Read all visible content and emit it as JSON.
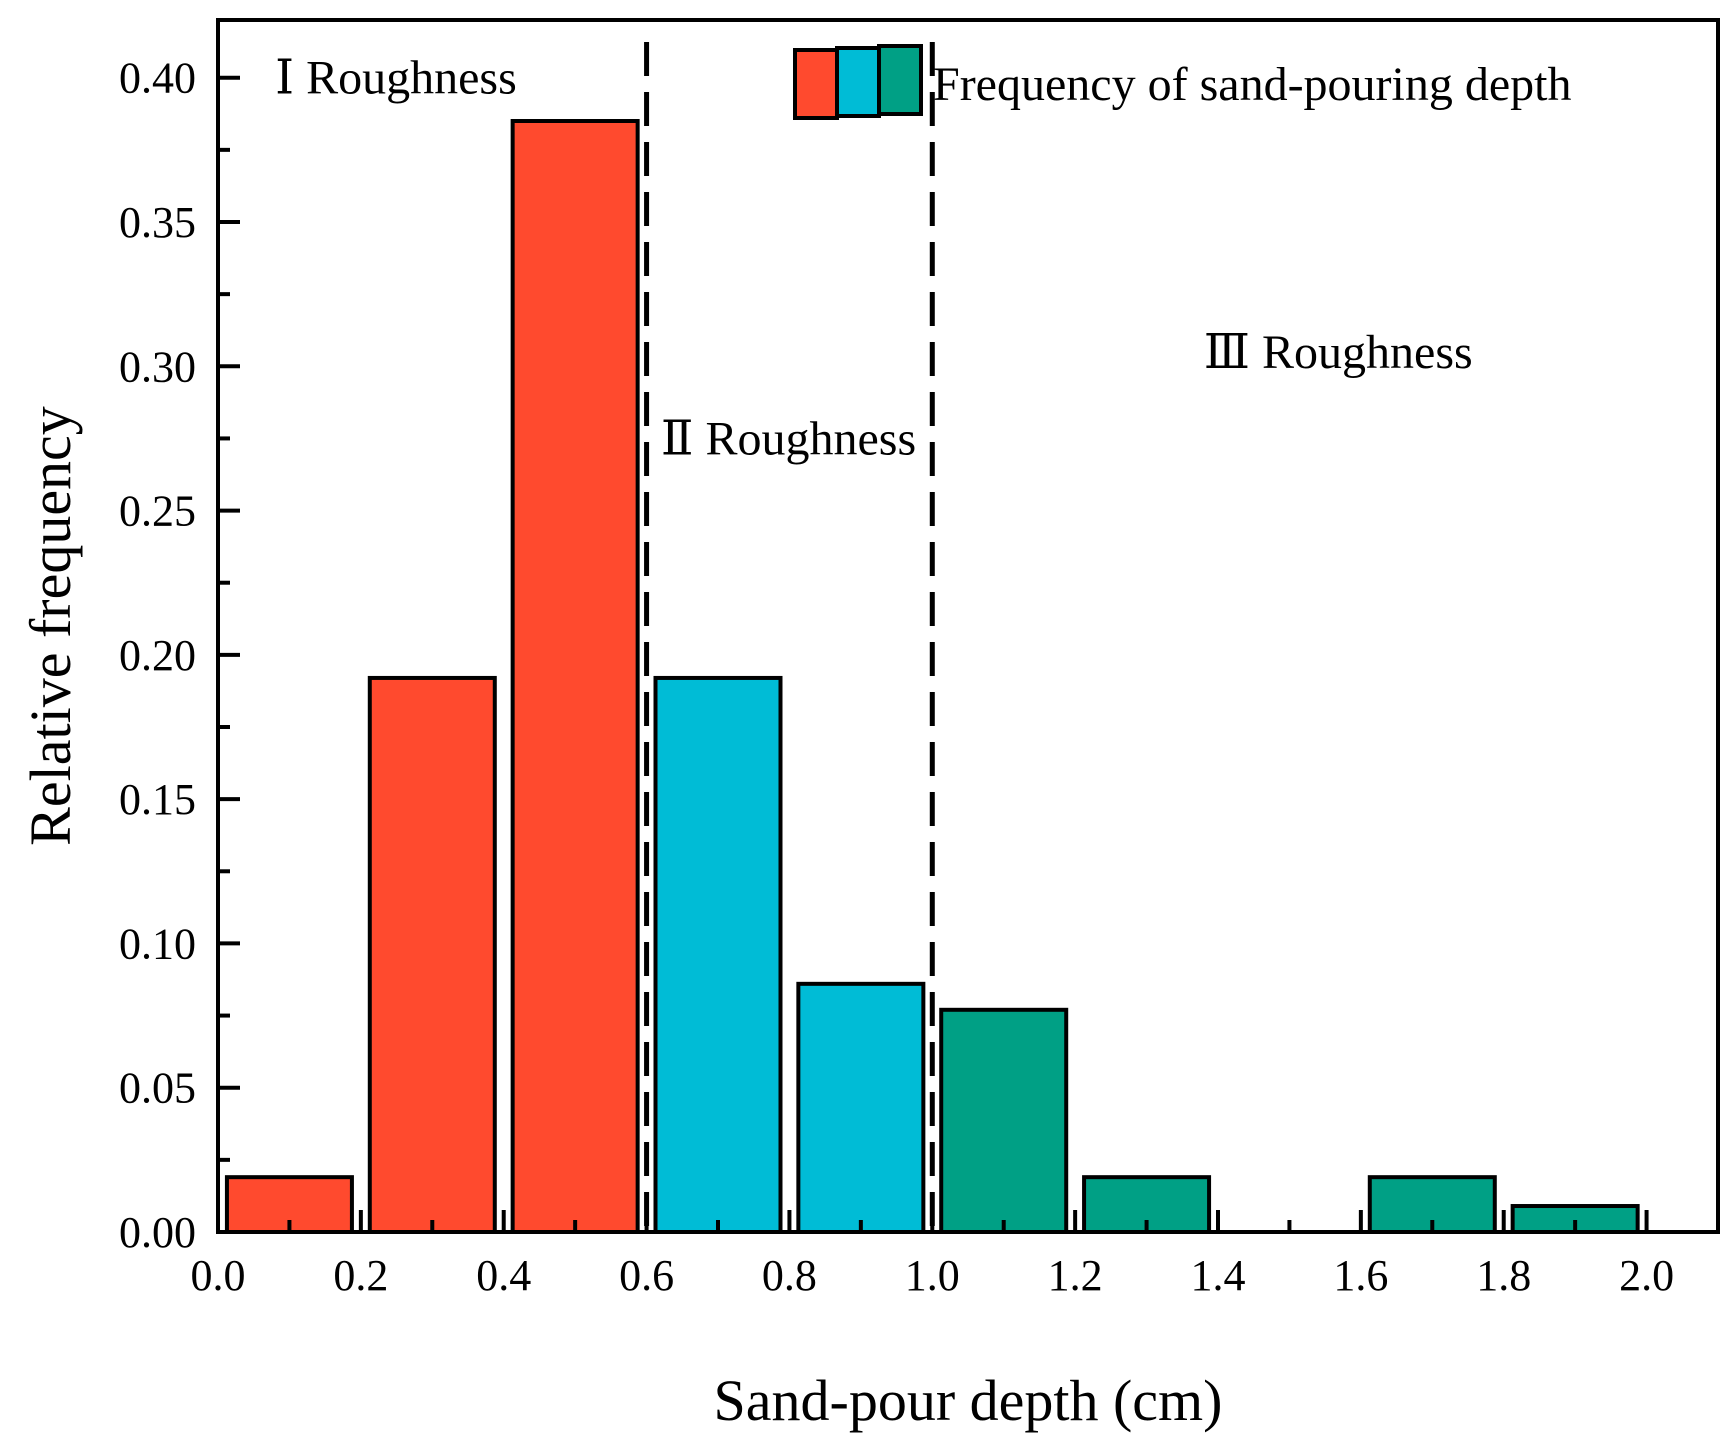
{
  "chart_data": {
    "type": "bar",
    "title": "",
    "xlabel": "Sand-pour depth (cm)",
    "ylabel": "Relative frequency",
    "xlim": [
      0.0,
      2.1
    ],
    "ylim": [
      0.0,
      0.42
    ],
    "x_ticks": [
      "0.0",
      "0.2",
      "0.4",
      "0.6",
      "0.8",
      "1.0",
      "1.2",
      "1.4",
      "1.6",
      "1.8",
      "2.0"
    ],
    "y_ticks": [
      "0.00",
      "0.05",
      "0.10",
      "0.15",
      "0.20",
      "0.25",
      "0.30",
      "0.35",
      "0.40"
    ],
    "bin_width": 0.2,
    "bins": [
      {
        "x0": 0.0,
        "x1": 0.2,
        "value": 0.019,
        "region": "I"
      },
      {
        "x0": 0.2,
        "x1": 0.4,
        "value": 0.192,
        "region": "I"
      },
      {
        "x0": 0.4,
        "x1": 0.6,
        "value": 0.385,
        "region": "I"
      },
      {
        "x0": 0.6,
        "x1": 0.8,
        "value": 0.192,
        "region": "II"
      },
      {
        "x0": 0.8,
        "x1": 1.0,
        "value": 0.086,
        "region": "II"
      },
      {
        "x0": 1.0,
        "x1": 1.2,
        "value": 0.077,
        "region": "III"
      },
      {
        "x0": 1.2,
        "x1": 1.4,
        "value": 0.019,
        "region": "III"
      },
      {
        "x0": 1.4,
        "x1": 1.6,
        "value": 0.0,
        "region": "III"
      },
      {
        "x0": 1.6,
        "x1": 1.8,
        "value": 0.019,
        "region": "III"
      },
      {
        "x0": 1.8,
        "x1": 2.0,
        "value": 0.009,
        "region": "III"
      }
    ],
    "region_colors": {
      "I": "#FF4A2E",
      "II": "#00BCD6",
      "III": "#00A085"
    },
    "dividers": [
      0.6,
      1.0
    ],
    "grid": false,
    "legend": {
      "label": "Frequency of sand-pouring depth",
      "swatch_colors": [
        "#FF4A2E",
        "#00BCD6",
        "#00A085"
      ],
      "placement": "top-right"
    },
    "annotations": [
      {
        "text": "Ⅰ  Roughness",
        "x": 0.08,
        "y": 0.4
      },
      {
        "text": "Ⅱ  Roughness",
        "x": 0.62,
        "y": 0.275
      },
      {
        "text": "Ⅲ Roughness",
        "x": 1.38,
        "y": 0.305
      }
    ]
  }
}
